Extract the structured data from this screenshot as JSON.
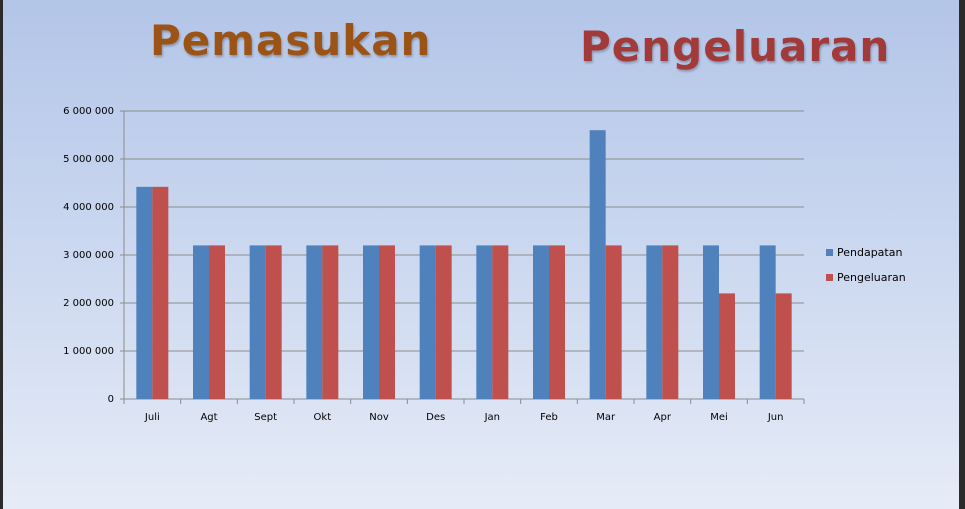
{
  "headings": {
    "income": "Pemasukan",
    "expense": "Pengeluaran",
    "income_color": "#9c5416",
    "expense_color": "#a23a3a"
  },
  "chart_data": {
    "type": "bar",
    "categories": [
      "Juli",
      "Agt",
      "Sept",
      "Okt",
      "Nov",
      "Des",
      "Jan",
      "Feb",
      "Mar",
      "Apr",
      "Mei",
      "Jun"
    ],
    "series": [
      {
        "name": "Pendapatan",
        "color": "#4f81bd",
        "values": [
          4420000,
          3200000,
          3200000,
          3200000,
          3200000,
          3200000,
          3200000,
          3200000,
          5600000,
          3200000,
          3200000,
          3200000
        ]
      },
      {
        "name": "Pengeluaran",
        "color": "#c0504d",
        "values": [
          4420000,
          3200000,
          3200000,
          3200000,
          3200000,
          3200000,
          3200000,
          3200000,
          3200000,
          3200000,
          2200000,
          2200000
        ]
      }
    ],
    "yticks": [
      0,
      1000000,
      2000000,
      3000000,
      4000000,
      5000000,
      6000000
    ],
    "ytick_labels": [
      "0",
      "1 000 000",
      "2 000 000",
      "3 000 000",
      "4 000 000",
      "5 000 000",
      "6 000 000"
    ],
    "ylim": [
      0,
      6000000
    ],
    "grid": true,
    "legend_position": "right"
  }
}
